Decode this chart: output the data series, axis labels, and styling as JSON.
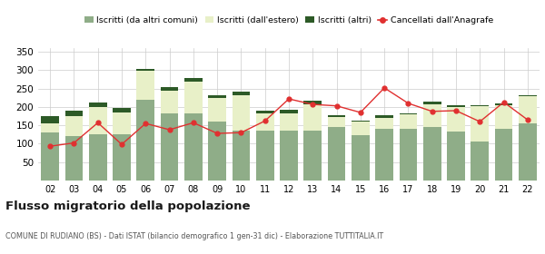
{
  "years": [
    "02",
    "03",
    "04",
    "05",
    "06",
    "07",
    "08",
    "09",
    "10",
    "11",
    "12",
    "13",
    "14",
    "15",
    "16",
    "17",
    "18",
    "19",
    "20",
    "21",
    "22"
  ],
  "iscritti_altri_comuni": [
    130,
    120,
    125,
    125,
    220,
    182,
    182,
    160,
    135,
    135,
    135,
    135,
    145,
    122,
    140,
    140,
    145,
    132,
    107,
    140,
    155
  ],
  "iscritti_estero": [
    25,
    55,
    75,
    60,
    78,
    63,
    88,
    65,
    98,
    48,
    48,
    72,
    28,
    38,
    30,
    40,
    62,
    68,
    95,
    65,
    75
  ],
  "iscritti_altri": [
    20,
    15,
    13,
    12,
    5,
    10,
    10,
    7,
    10,
    7,
    10,
    10,
    5,
    3,
    8,
    2,
    8,
    5,
    3,
    5,
    3
  ],
  "cancellati": [
    93,
    102,
    157,
    98,
    155,
    138,
    157,
    128,
    130,
    162,
    222,
    207,
    203,
    185,
    252,
    210,
    188,
    190,
    160,
    213,
    165
  ],
  "color_altri_comuni": "#8fad88",
  "color_estero": "#e8f0c8",
  "color_altri": "#2d5a27",
  "color_cancellati": "#e03030",
  "title": "Flusso migratorio della popolazione",
  "subtitle": "COMUNE DI RUDIANO (BS) - Dati ISTAT (bilancio demografico 1 gen-31 dic) - Elaborazione TUTTITALIA.IT",
  "legend_labels": [
    "Iscritti (da altri comuni)",
    "Iscritti (dall'estero)",
    "Iscritti (altri)",
    "Cancellati dall'Anagrafe"
  ],
  "ylim": [
    0,
    360
  ],
  "yticks": [
    50,
    100,
    150,
    200,
    250,
    300,
    350
  ],
  "background_color": "#ffffff",
  "grid_color": "#cccccc"
}
